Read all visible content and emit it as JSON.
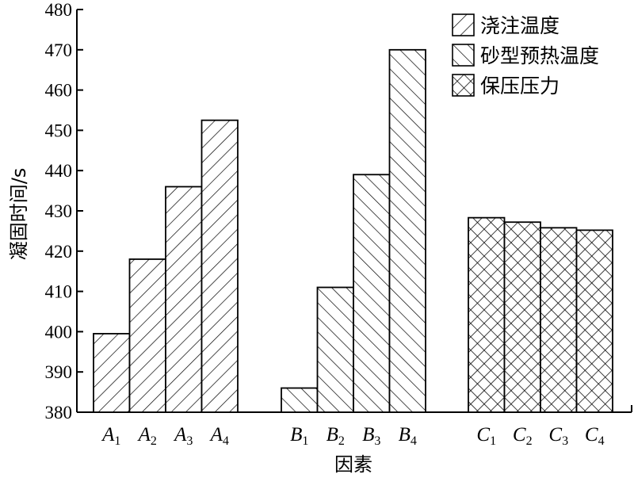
{
  "chart_data": {
    "type": "bar",
    "title": "",
    "xlabel": "因素",
    "ylabel": "凝固时间/s",
    "ylim": [
      380,
      480
    ],
    "yticks": [
      380,
      390,
      400,
      410,
      420,
      430,
      440,
      450,
      460,
      470,
      480
    ],
    "grid": false,
    "legend_position": "top-right",
    "series": [
      {
        "name": "浇注温度",
        "pattern": "diagonal-forward",
        "categories": [
          {
            "letter": "A",
            "sub": "1"
          },
          {
            "letter": "A",
            "sub": "2"
          },
          {
            "letter": "A",
            "sub": "3"
          },
          {
            "letter": "A",
            "sub": "4"
          }
        ],
        "values": [
          399.5,
          418,
          436,
          452.5
        ]
      },
      {
        "name": "砂型预热温度",
        "pattern": "diagonal-backward",
        "categories": [
          {
            "letter": "B",
            "sub": "1"
          },
          {
            "letter": "B",
            "sub": "2"
          },
          {
            "letter": "B",
            "sub": "3"
          },
          {
            "letter": "B",
            "sub": "4"
          }
        ],
        "values": [
          386,
          411,
          439,
          470
        ]
      },
      {
        "name": "保压压力",
        "pattern": "crosshatch",
        "categories": [
          {
            "letter": "C",
            "sub": "1"
          },
          {
            "letter": "C",
            "sub": "2"
          },
          {
            "letter": "C",
            "sub": "3"
          },
          {
            "letter": "C",
            "sub": "4"
          }
        ],
        "values": [
          428.3,
          427.2,
          425.8,
          425.2
        ]
      }
    ]
  }
}
